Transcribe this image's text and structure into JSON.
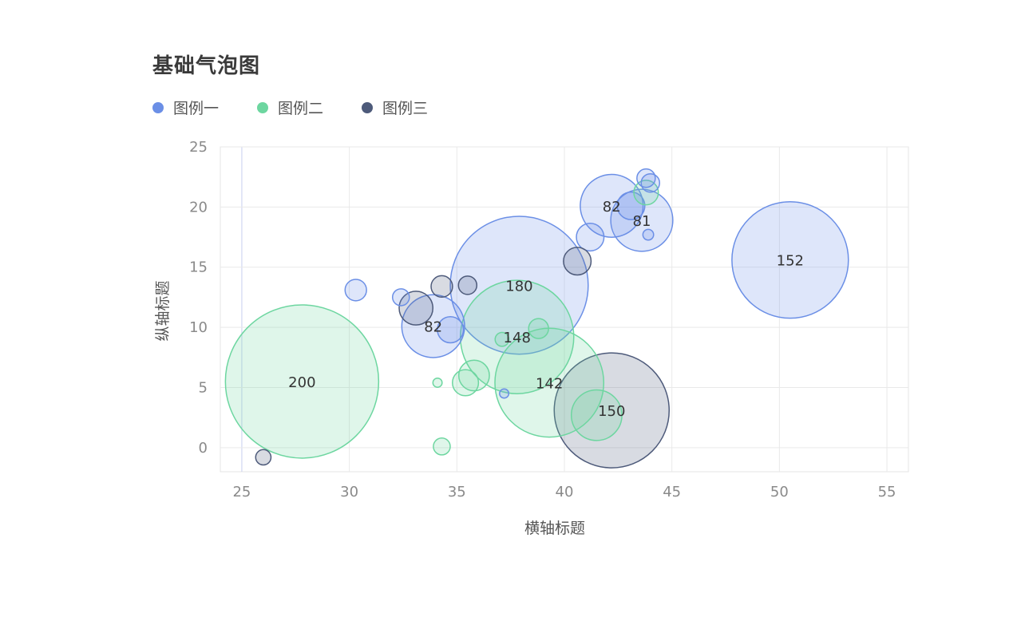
{
  "title": "基础气泡图",
  "legend": [
    {
      "label": "图例一",
      "color": "#6b8fe6"
    },
    {
      "label": "图例二",
      "color": "#6dd6a0"
    },
    {
      "label": "图例三",
      "color": "#4d5a7a"
    }
  ],
  "chart_data": {
    "type": "scatter",
    "title": "基础气泡图",
    "xlabel": "横轴标题",
    "ylabel": "纵轴标题",
    "xlim": [
      24,
      56
    ],
    "ylim": [
      -2,
      25
    ],
    "xticks": [
      25,
      30,
      35,
      40,
      45,
      50,
      55
    ],
    "yticks": [
      0,
      5,
      10,
      15,
      20,
      25
    ],
    "grid": true,
    "legend_position": "top-left",
    "series": [
      {
        "name": "图例一",
        "color": "#6b8fe6",
        "fill": "rgba(107,143,230,0.22)",
        "points": [
          {
            "x": 37.9,
            "y": 13.5,
            "size": 180,
            "label": "180"
          },
          {
            "x": 50.5,
            "y": 15.6,
            "size": 152,
            "label": "152"
          },
          {
            "x": 33.9,
            "y": 10.1,
            "size": 82,
            "label": "82"
          },
          {
            "x": 42.2,
            "y": 20.1,
            "size": 82,
            "label": "82"
          },
          {
            "x": 43.6,
            "y": 18.9,
            "size": 81,
            "label": "81"
          },
          {
            "x": 41.2,
            "y": 17.5,
            "size": 36,
            "label": ""
          },
          {
            "x": 43.1,
            "y": 20.1,
            "size": 36,
            "label": ""
          },
          {
            "x": 34.7,
            "y": 9.8,
            "size": 34,
            "label": ""
          },
          {
            "x": 30.3,
            "y": 13.1,
            "size": 28,
            "label": ""
          },
          {
            "x": 32.4,
            "y": 12.5,
            "size": 22,
            "label": ""
          },
          {
            "x": 43.8,
            "y": 22.4,
            "size": 24,
            "label": ""
          },
          {
            "x": 44.0,
            "y": 22.0,
            "size": 24,
            "label": ""
          },
          {
            "x": 43.9,
            "y": 17.7,
            "size": 14,
            "label": ""
          },
          {
            "x": 37.2,
            "y": 4.5,
            "size": 12,
            "label": ""
          }
        ]
      },
      {
        "name": "图例二",
        "color": "#6dd6a0",
        "fill": "rgba(109,214,160,0.22)",
        "points": [
          {
            "x": 27.8,
            "y": 5.5,
            "size": 200,
            "label": "200"
          },
          {
            "x": 37.8,
            "y": 9.2,
            "size": 148,
            "label": "148"
          },
          {
            "x": 39.3,
            "y": 5.4,
            "size": 142,
            "label": "142"
          },
          {
            "x": 41.5,
            "y": 2.7,
            "size": 66,
            "label": ""
          },
          {
            "x": 35.8,
            "y": 6.0,
            "size": 40,
            "label": ""
          },
          {
            "x": 35.4,
            "y": 5.4,
            "size": 34,
            "label": ""
          },
          {
            "x": 43.8,
            "y": 21.2,
            "size": 32,
            "label": ""
          },
          {
            "x": 38.8,
            "y": 9.9,
            "size": 26,
            "label": ""
          },
          {
            "x": 37.1,
            "y": 9.0,
            "size": 18,
            "label": ""
          },
          {
            "x": 34.3,
            "y": 0.1,
            "size": 22,
            "label": ""
          },
          {
            "x": 34.1,
            "y": 5.4,
            "size": 12,
            "label": ""
          }
        ]
      },
      {
        "name": "图例三",
        "color": "#4d5a7a",
        "fill": "rgba(77,90,122,0.22)",
        "points": [
          {
            "x": 42.2,
            "y": 3.1,
            "size": 150,
            "label": "150"
          },
          {
            "x": 33.1,
            "y": 11.6,
            "size": 44,
            "label": ""
          },
          {
            "x": 40.6,
            "y": 15.5,
            "size": 36,
            "label": ""
          },
          {
            "x": 34.3,
            "y": 13.4,
            "size": 28,
            "label": ""
          },
          {
            "x": 35.5,
            "y": 13.5,
            "size": 24,
            "label": ""
          },
          {
            "x": 26.0,
            "y": -0.8,
            "size": 20,
            "label": ""
          }
        ]
      }
    ]
  }
}
